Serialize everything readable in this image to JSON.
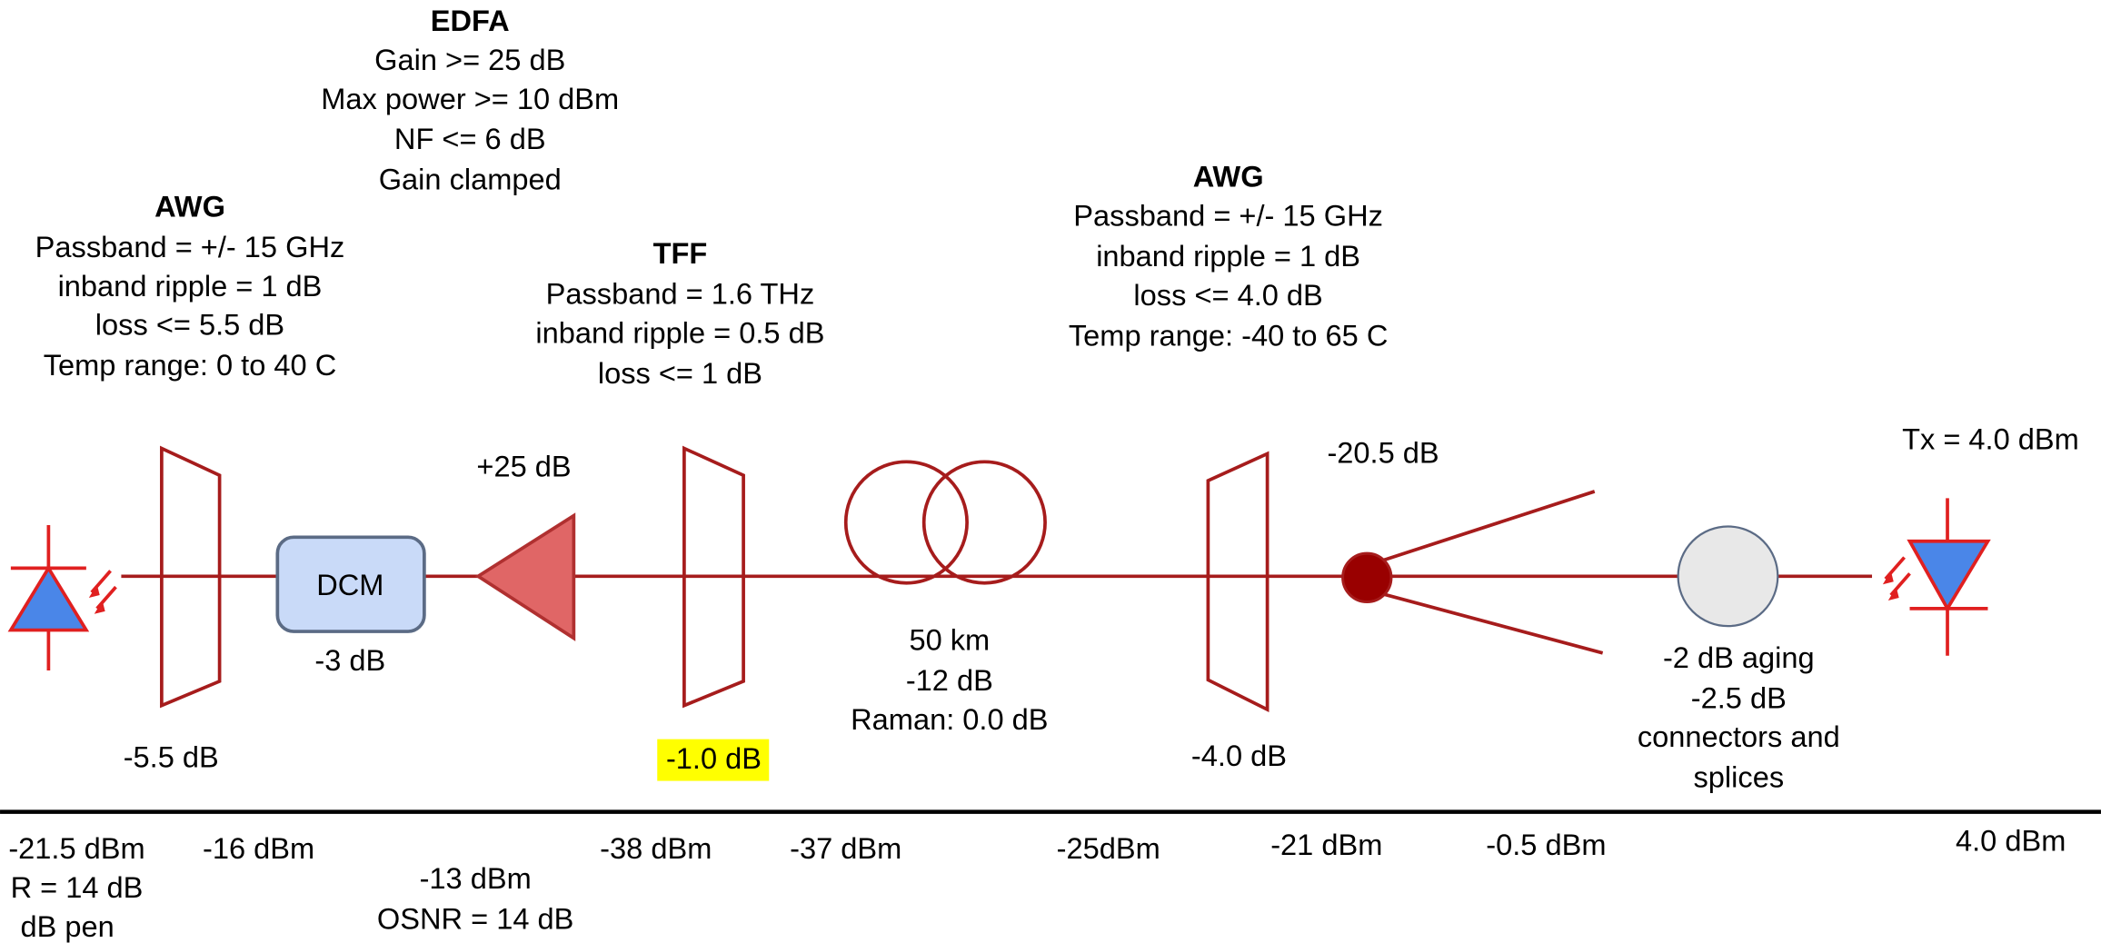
{
  "edfa": {
    "title": "EDFA",
    "lines": [
      "Gain >= 25 dB",
      "Max power >= 10 dBm",
      "NF <= 6 dB",
      "Gain clamped"
    ]
  },
  "awg_rx": {
    "title": "AWG",
    "lines": [
      "Passband = +/- 15 GHz",
      "inband ripple = 1 dB",
      "loss <= 5.5 dB",
      "Temp range: 0 to 40 C"
    ]
  },
  "tff": {
    "title": "TFF",
    "lines": [
      "Passband = 1.6 THz",
      "inband ripple = 0.5 dB",
      "loss <= 1 dB"
    ]
  },
  "awg_tx": {
    "title": "AWG",
    "lines": [
      "Passband = +/- 15 GHz",
      "inband ripple = 1 dB",
      "loss <= 4.0 dB",
      "Temp range: -40 to 65 C"
    ]
  },
  "components": {
    "awg_rx_loss": "-5.5 dB",
    "dcm": {
      "label": "DCM",
      "loss": "-3 dB"
    },
    "amp_gain": "+25 dB",
    "tff_loss": "-1.0 dB",
    "fiber": [
      "50 km",
      "-12 dB",
      "Raman: 0.0 dB"
    ],
    "awg_tx_loss": "-4.0 dB",
    "splitter_loss": "-20.5 dB",
    "connectors": [
      "-2 dB aging",
      "-2.5 dB",
      "connectors and",
      "splices"
    ],
    "tx": "Tx = 4.0 dBm"
  },
  "power_levels": {
    "rx": [
      "-21.5 dBm",
      "R = 14 dB",
      "dB pen"
    ],
    "after_dcm": "-16 dBm",
    "after_amp": [
      "-13 dBm",
      "OSNR = 14 dB"
    ],
    "before_tff": "-38 dBm",
    "after_fiber": "-37 dBm",
    "before_fiber": "-25dBm",
    "after_splitter": "-21 dBm",
    "before_splitter": "-0.5 dBm",
    "tx": "4.0 dBm"
  }
}
